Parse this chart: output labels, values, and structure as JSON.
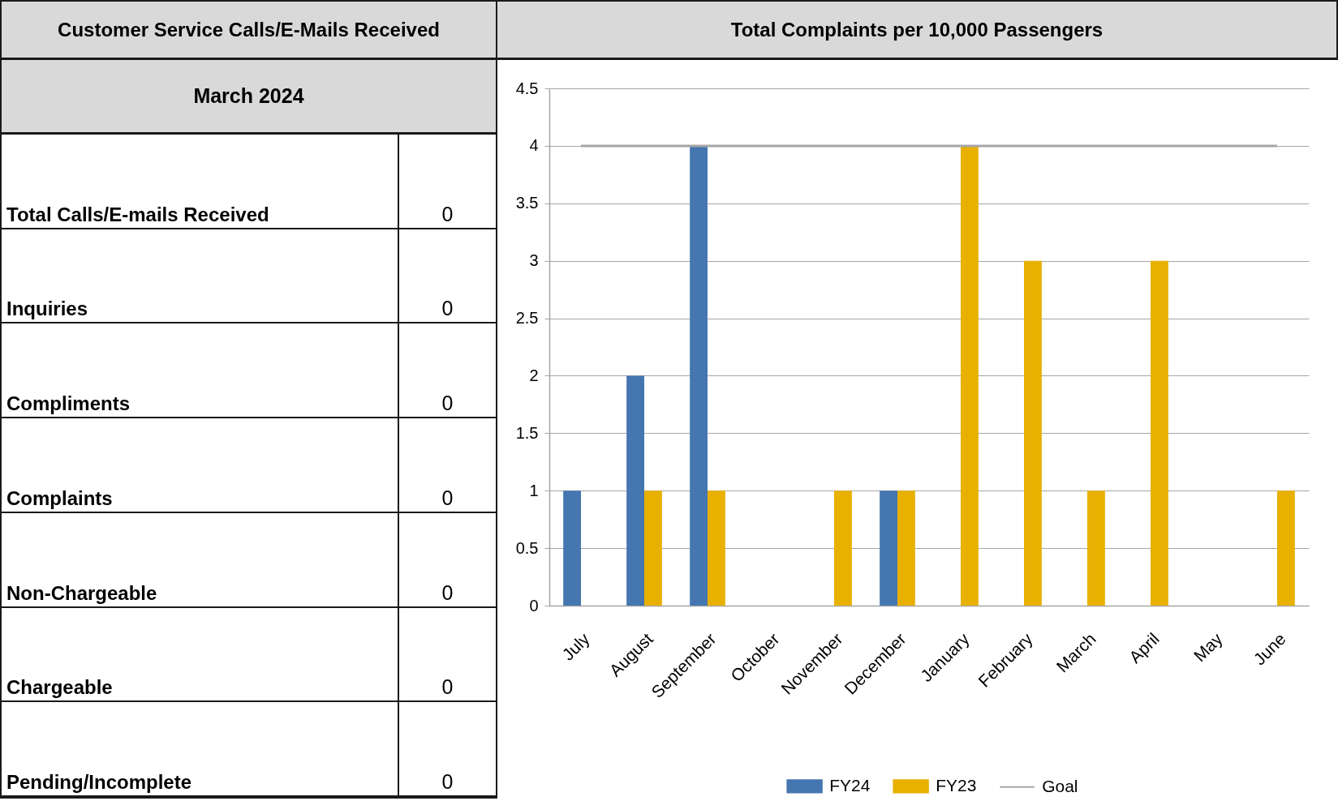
{
  "chart_data": [
    {
      "type": "other",
      "title": "Customer Service Calls/E-Mails Received",
      "subtitle": "March 2024",
      "categories": [
        "Total Calls/E-mails Received",
        "Inquiries",
        "Compliments",
        "Complaints",
        "Non-Chargeable",
        "Chargeable",
        "Pending/Incomplete"
      ],
      "values": [
        0,
        0,
        0,
        0,
        0,
        0,
        0
      ],
      "data_labels": true
    },
    {
      "type": "bar",
      "title": "Total Complaints per 10,000 Passengers",
      "categories": [
        "July",
        "August",
        "September",
        "October",
        "November",
        "December",
        "January",
        "February",
        "March",
        "April",
        "May",
        "June"
      ],
      "series": [
        {
          "name": "FY24",
          "color": "#4576b0",
          "values": [
            1,
            2,
            4,
            null,
            null,
            1,
            null,
            null,
            null,
            null,
            null,
            null
          ]
        },
        {
          "name": "FY23",
          "color": "#e8b000",
          "values": [
            null,
            1,
            1,
            null,
            1,
            1,
            4,
            3,
            1,
            3,
            null,
            1
          ]
        },
        {
          "name": "Goal",
          "type": "line",
          "color": "#a6a6a6",
          "values": [
            4,
            4,
            4,
            4,
            4,
            4,
            4,
            4,
            4,
            4,
            4,
            4
          ]
        }
      ],
      "ylim": [
        0,
        4.5
      ],
      "yticks": [
        0,
        0.5,
        1,
        1.5,
        2,
        2.5,
        3,
        3.5,
        4,
        4.5
      ],
      "grid": "y",
      "legend": "bottom"
    }
  ]
}
